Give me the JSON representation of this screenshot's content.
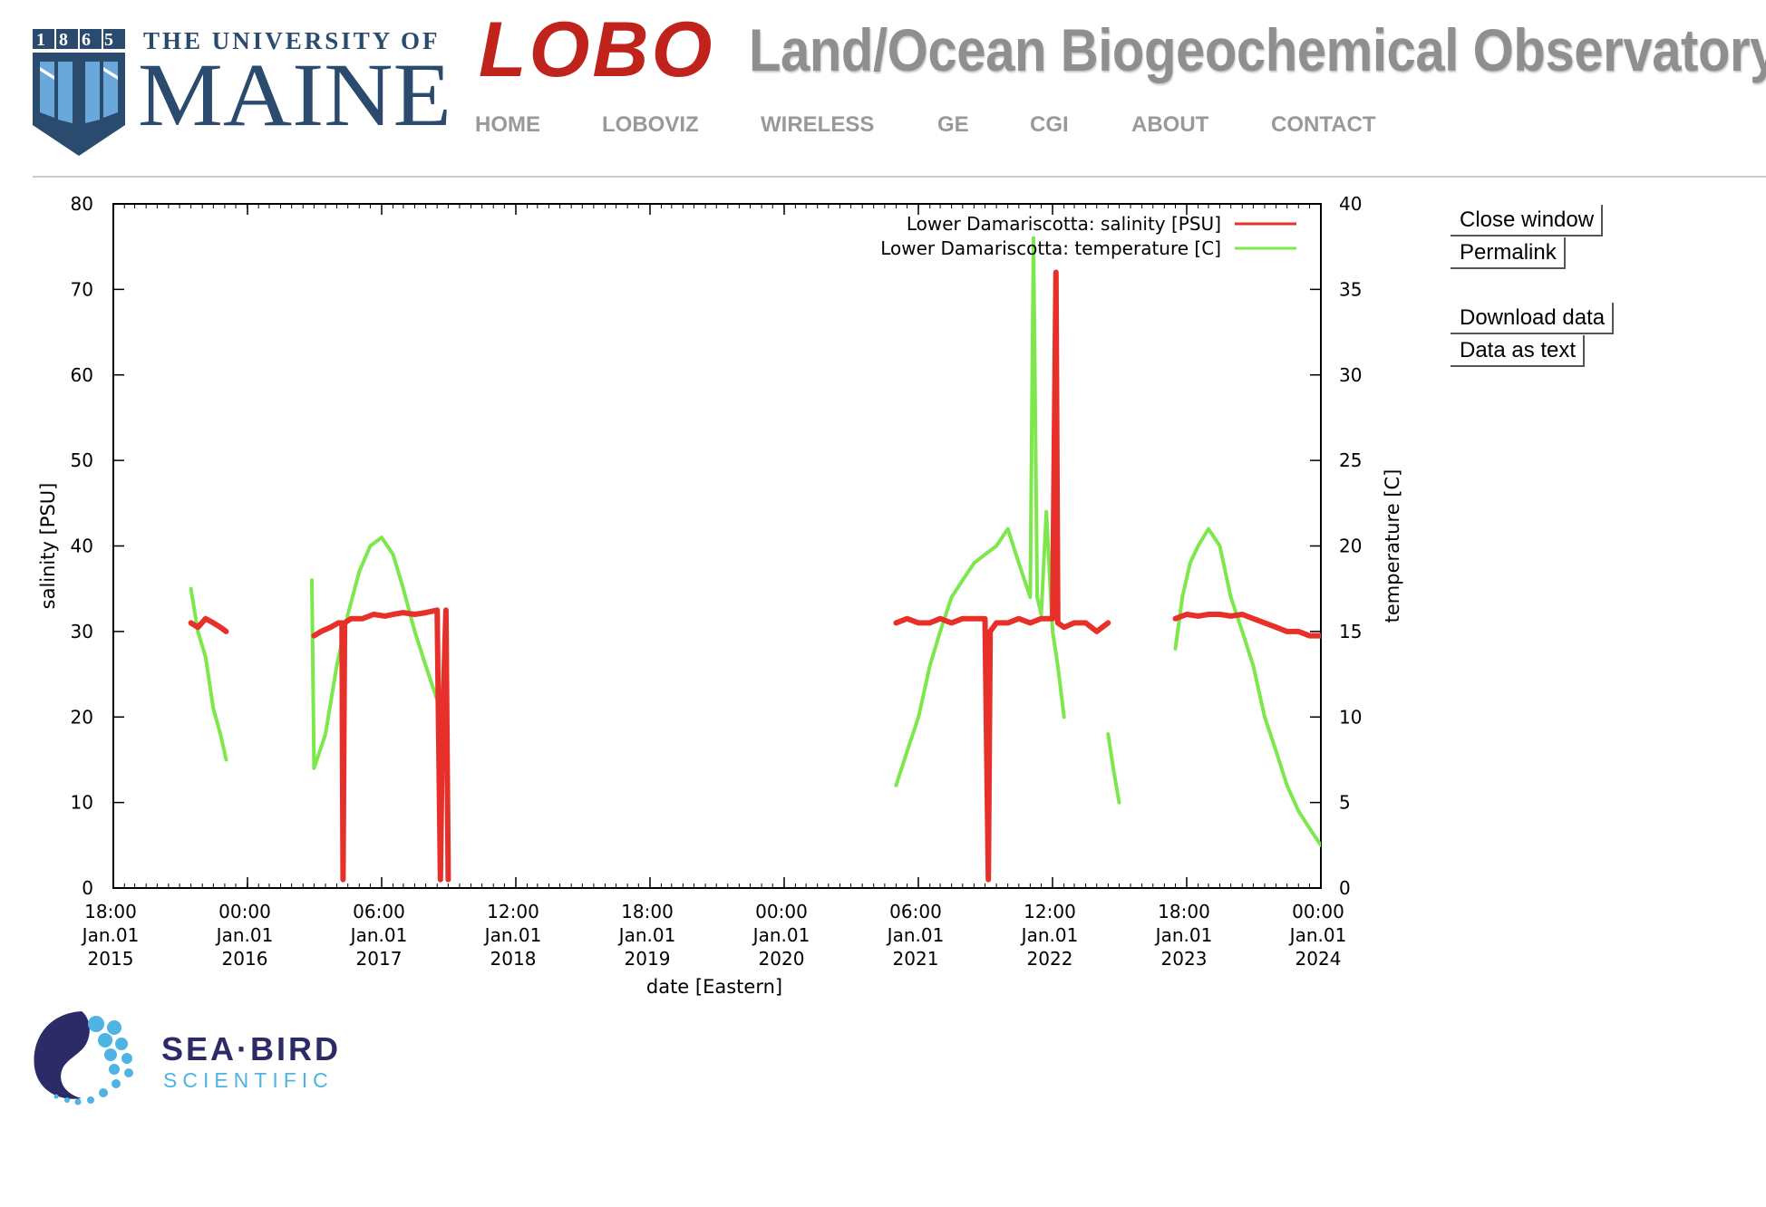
{
  "header": {
    "umaine": {
      "year": "1865",
      "line1": "THE UNIVERSITY OF",
      "line2": "MAINE"
    },
    "lobo": "LOBO",
    "title": "Land/Ocean Biogeochemical Observatory"
  },
  "nav": {
    "items": [
      "HOME",
      "LOBOVIZ",
      "WIRELESS",
      "GE",
      "CGI",
      "ABOUT",
      "CONTACT"
    ]
  },
  "actions": {
    "close": "Close window",
    "permalink": "Permalink",
    "download": "Download data",
    "as_text": "Data as text"
  },
  "footer": {
    "sponsor_line1": "SEA·BIRD",
    "sponsor_line2": "SCIENTIFIC"
  },
  "colors": {
    "salinity": "#e8302a",
    "temperature": "#7ce84b",
    "umaine_blue": "#2a4a6e",
    "lobo_red": "#c0231c",
    "seabird_navy": "#2d2a68",
    "seabird_blue": "#4fb3e3"
  },
  "chart_data": {
    "type": "line",
    "xlabel": "date [Eastern]",
    "ylabel": "salinity [PSU]",
    "y2label": "temperature [C]",
    "ylim": [
      0,
      80
    ],
    "y2lim": [
      0,
      40
    ],
    "yticks": [
      0,
      10,
      20,
      30,
      40,
      50,
      60,
      70,
      80
    ],
    "y2ticks": [
      0,
      5,
      10,
      15,
      20,
      25,
      30,
      35,
      40
    ],
    "xlim": [
      "2015-01-01T18:00",
      "2024-01-01T00:00"
    ],
    "xticks": [
      {
        "time": "18:00",
        "date": "Jan.01",
        "year": "2015"
      },
      {
        "time": "00:00",
        "date": "Jan.01",
        "year": "2016"
      },
      {
        "time": "06:00",
        "date": "Jan.01",
        "year": "2017"
      },
      {
        "time": "12:00",
        "date": "Jan.01",
        "year": "2018"
      },
      {
        "time": "18:00",
        "date": "Jan.01",
        "year": "2019"
      },
      {
        "time": "00:00",
        "date": "Jan.01",
        "year": "2020"
      },
      {
        "time": "06:00",
        "date": "Jan.01",
        "year": "2021"
      },
      {
        "time": "12:00",
        "date": "Jan.01",
        "year": "2022"
      },
      {
        "time": "18:00",
        "date": "Jan.01",
        "year": "2023"
      },
      {
        "time": "00:00",
        "date": "Jan.01",
        "year": "2024"
      }
    ],
    "legend": "top-right",
    "grid": false,
    "series": [
      {
        "name": "Lower Damariscotta: salinity [PSU]",
        "axis": "left",
        "segments": [
          {
            "x": [
              "2015-08-01",
              "2015-08-20",
              "2015-09-10",
              "2015-10-01",
              "2015-10-20",
              "2015-11-05"
            ],
            "y": [
              31,
              30.5,
              31.5,
              31,
              30.5,
              30
            ]
          },
          {
            "x": [
              "2016-07-01",
              "2016-07-20",
              "2016-08-15",
              "2016-09-05",
              "2016-09-15",
              "2016-09-18",
              "2016-09-22",
              "2016-10-10",
              "2016-11-10",
              "2016-12-10",
              "2017-01-10",
              "2017-02-01",
              "2017-03-01",
              "2017-04-01",
              "2017-05-01",
              "2017-06-01",
              "2017-06-10",
              "2017-06-15",
              "2017-06-25",
              "2017-07-01"
            ],
            "y": [
              29.5,
              30,
              30.5,
              31,
              31,
              1,
              31,
              31.5,
              31.5,
              32,
              31.8,
              32,
              32.2,
              32,
              32.2,
              32.5,
              1,
              18,
              32.5,
              1
            ]
          },
          {
            "x": [
              "2020-11-01",
              "2020-12-01",
              "2021-01-01",
              "2021-02-01",
              "2021-03-01",
              "2021-04-01",
              "2021-05-01",
              "2021-06-01",
              "2021-07-01",
              "2021-07-10",
              "2021-07-15",
              "2021-08-01",
              "2021-09-01",
              "2021-10-01",
              "2021-11-01",
              "2021-12-01",
              "2022-01-01",
              "2022-01-10",
              "2022-01-15",
              "2022-02-01",
              "2022-03-01",
              "2022-04-01",
              "2022-05-01",
              "2022-06-01"
            ],
            "y": [
              31,
              31.5,
              31,
              31,
              31.5,
              31,
              31.5,
              31.5,
              31.5,
              1,
              30,
              31,
              31,
              31.5,
              31,
              31.5,
              31.5,
              72,
              31,
              30.5,
              31,
              31,
              30,
              31
            ]
          },
          {
            "x": [
              "2022-12-01",
              "2023-01-01",
              "2023-02-01",
              "2023-03-01",
              "2023-04-01",
              "2023-05-01",
              "2023-06-01",
              "2023-07-01",
              "2023-08-01",
              "2023-09-01",
              "2023-10-01",
              "2023-11-01",
              "2023-12-01",
              "2024-01-01",
              "2024-02-01",
              "2024-03-01"
            ],
            "y": [
              31.5,
              32,
              31.8,
              32,
              32,
              31.8,
              32,
              31.5,
              31,
              30.5,
              30,
              30,
              29.5,
              29.5,
              29.5,
              29.5
            ]
          }
        ]
      },
      {
        "name": "Lower Damariscotta: temperature [C]",
        "axis": "right",
        "segments": [
          {
            "x": [
              "2015-08-01",
              "2015-08-20",
              "2015-09-10",
              "2015-10-01",
              "2015-10-20",
              "2015-11-05"
            ],
            "y": [
              17.5,
              15,
              13.5,
              10.5,
              9,
              7.5
            ]
          },
          {
            "x": [
              "2016-06-25",
              "2016-07-01",
              "2016-08-01",
              "2016-09-01",
              "2016-10-01",
              "2016-11-01",
              "2016-12-01",
              "2017-01-01",
              "2017-02-01",
              "2017-03-01",
              "2017-04-01",
              "2017-05-01",
              "2017-06-01",
              "2017-07-01"
            ],
            "y": [
              18,
              7,
              9,
              13,
              16,
              18.5,
              20,
              20.5,
              19.5,
              17.5,
              15,
              13,
              11,
              9
            ]
          },
          {
            "x": [
              "2020-11-01",
              "2020-12-01",
              "2021-01-01",
              "2021-02-01",
              "2021-03-01",
              "2021-04-01",
              "2021-05-01",
              "2021-06-01",
              "2021-07-01",
              "2021-08-01",
              "2021-09-01",
              "2021-10-01",
              "2021-11-01",
              "2021-11-10",
              "2021-11-20",
              "2021-12-01",
              "2021-12-15",
              "2022-01-01",
              "2022-01-15",
              "2022-02-01"
            ],
            "y": [
              6,
              8,
              10,
              13,
              15,
              17,
              18,
              19,
              19.5,
              20,
              21,
              19,
              17,
              38,
              17,
              16,
              22,
              15,
              13,
              10
            ]
          },
          {
            "x": [
              "2022-06-01",
              "2022-06-15",
              "2022-07-01"
            ],
            "y": [
              9,
              7,
              5
            ]
          },
          {
            "x": [
              "2022-12-01",
              "2022-12-20",
              "2023-01-10",
              "2023-02-01",
              "2023-03-01",
              "2023-04-01",
              "2023-05-01",
              "2023-06-01",
              "2023-07-01",
              "2023-08-01",
              "2023-09-01",
              "2023-10-01",
              "2023-11-01",
              "2023-12-01",
              "2024-01-01",
              "2024-02-01",
              "2024-03-01"
            ],
            "y": [
              14,
              17,
              19,
              20,
              21,
              20,
              17,
              15,
              13,
              10,
              8,
              6,
              4.5,
              3.5,
              2.5,
              3.5,
              4.5
            ]
          }
        ]
      }
    ]
  }
}
